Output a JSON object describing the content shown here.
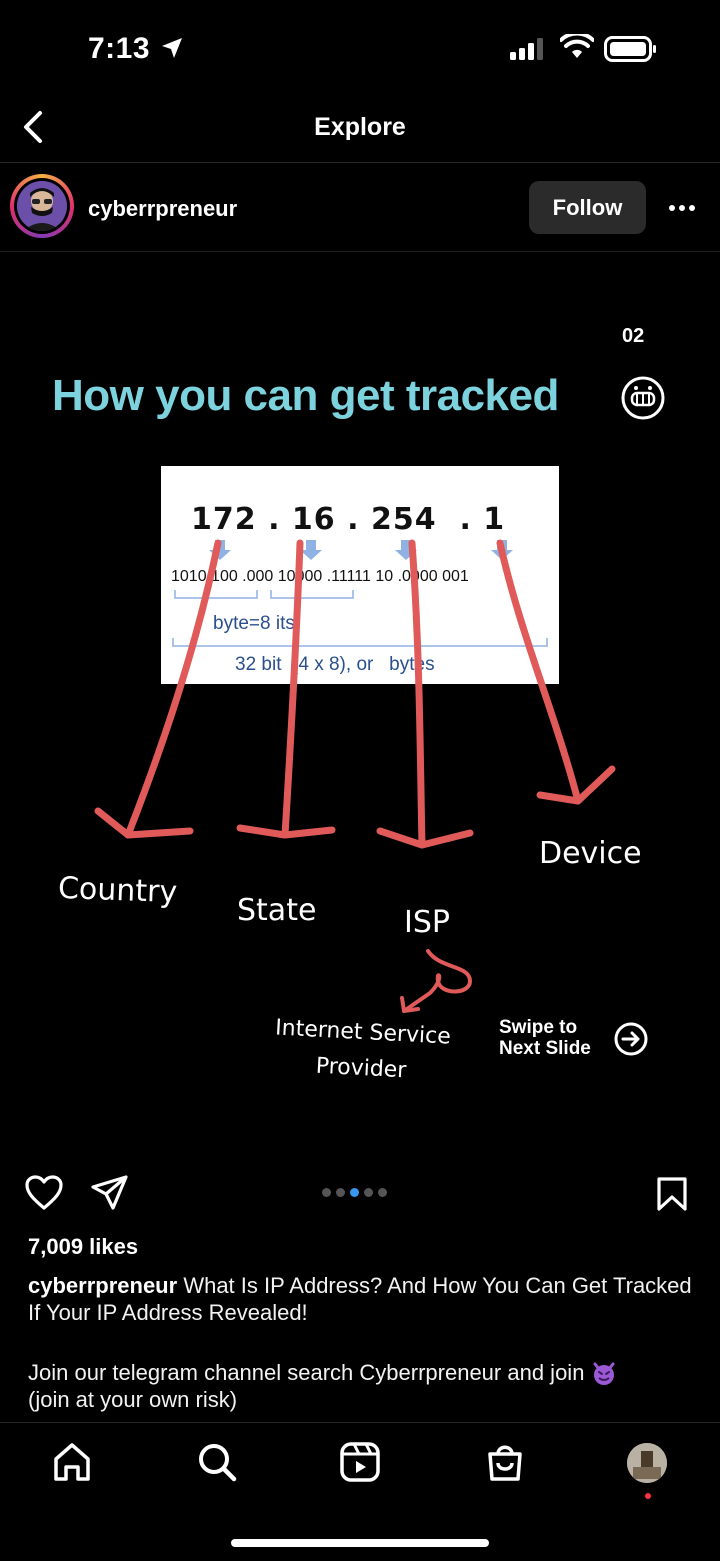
{
  "status_bar": {
    "time": "7:13",
    "icons": [
      "location-arrow-icon",
      "cellular-signal-icon",
      "wifi-icon",
      "battery-icon"
    ]
  },
  "nav": {
    "title": "Explore",
    "back_icon": "chevron-left-icon"
  },
  "post": {
    "username": "cyberrpreneur",
    "follow_label": "Follow",
    "more_icon": "more-horizontal-icon",
    "slide": {
      "number": "02",
      "headline": "How you can get tracked",
      "ip_top": "172 . 16 . 254  . 1",
      "ip_binary": "1010 100 .000 10000 .11111 10 .0000 001",
      "ip_byte": "byte=8  its",
      "ip_total": "32 bit  (4 x 8), or   bytes",
      "labels": {
        "country": "Country",
        "state": "State",
        "isp": "ISP",
        "device": "Device",
        "isp_full_line1": "Internet Service",
        "isp_full_line2": "Provider"
      },
      "swipe_line1": "Swipe to",
      "swipe_line2": "Next Slide",
      "accent_color": "#7dd3dd",
      "arrow_color": "#e05a5a"
    },
    "carousel": {
      "count": 5,
      "active_index": 2
    },
    "likes": "7,009 likes",
    "caption_user": "cyberrpreneur",
    "caption_text": "What Is IP Address? And How You Can Get Tracked If Your IP Address Revealed!",
    "caption_line2": "Join our telegram channel search Cyberrpreneur and join",
    "caption_line3": "(join at your own risk)"
  },
  "tabbar": {
    "items": [
      "home-icon",
      "search-icon",
      "reels-icon",
      "shop-icon",
      "profile-avatar"
    ]
  }
}
